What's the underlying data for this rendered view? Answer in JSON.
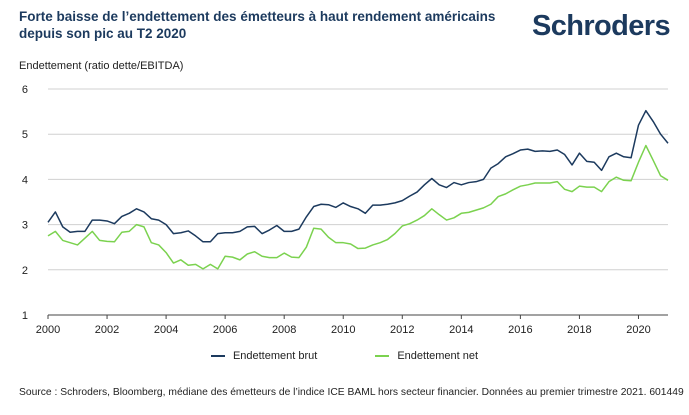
{
  "header": {
    "title_line1": "Forte baisse de l’endettement des émetteurs à haut rendement américains",
    "title_line2": "depuis son pic au T2 2020",
    "logo_text": "Schroders"
  },
  "footer": {
    "source": "Source : Schroders, Bloomberg, médiane des émetteurs de l’indice ICE BAML hors secteur financier. Données au premier trimestre 2021. 601449"
  },
  "colors": {
    "brut": "#1c3a5e",
    "net": "#7bd24f",
    "grid": "#d0d0d0",
    "axis": "#444444"
  },
  "chart_data": {
    "type": "line",
    "title": "Forte baisse de l’endettement des émetteurs à haut rendement américains depuis son pic au T2 2020",
    "ylabel": "Endettement (ratio dette/EBITDA)",
    "xlabel": "",
    "xlim": [
      2000,
      2021.0
    ],
    "ylim": [
      1,
      6
    ],
    "xticks": [
      2000,
      2002,
      2004,
      2006,
      2008,
      2010,
      2012,
      2014,
      2016,
      2018,
      2020
    ],
    "yticks": [
      1,
      2,
      3,
      4,
      5,
      6
    ],
    "grid": "horizontal",
    "legend_position": "bottom",
    "series": [
      {
        "name": "Endettement brut",
        "color": "#1c3a5e",
        "x": [
          2000.0,
          2000.25,
          2000.5,
          2000.75,
          2001.0,
          2001.25,
          2001.5,
          2001.75,
          2002.0,
          2002.25,
          2002.5,
          2002.75,
          2003.0,
          2003.25,
          2003.5,
          2003.75,
          2004.0,
          2004.25,
          2004.5,
          2004.75,
          2005.0,
          2005.25,
          2005.5,
          2005.75,
          2006.0,
          2006.25,
          2006.5,
          2006.75,
          2007.0,
          2007.25,
          2007.5,
          2007.75,
          2008.0,
          2008.25,
          2008.5,
          2008.75,
          2009.0,
          2009.25,
          2009.5,
          2009.75,
          2010.0,
          2010.25,
          2010.5,
          2010.75,
          2011.0,
          2011.25,
          2011.5,
          2011.75,
          2012.0,
          2012.25,
          2012.5,
          2012.75,
          2013.0,
          2013.25,
          2013.5,
          2013.75,
          2014.0,
          2014.25,
          2014.5,
          2014.75,
          2015.0,
          2015.25,
          2015.5,
          2015.75,
          2016.0,
          2016.25,
          2016.5,
          2016.75,
          2017.0,
          2017.25,
          2017.5,
          2017.75,
          2018.0,
          2018.25,
          2018.5,
          2018.75,
          2019.0,
          2019.25,
          2019.5,
          2019.75,
          2020.0,
          2020.25,
          2020.5,
          2020.75,
          2021.0
        ],
        "values": [
          3.05,
          3.28,
          2.95,
          2.83,
          2.85,
          2.85,
          3.1,
          3.1,
          3.08,
          3.02,
          3.18,
          3.25,
          3.35,
          3.28,
          3.13,
          3.1,
          3.0,
          2.8,
          2.82,
          2.86,
          2.75,
          2.62,
          2.62,
          2.8,
          2.82,
          2.82,
          2.85,
          2.95,
          2.96,
          2.8,
          2.88,
          2.98,
          2.85,
          2.85,
          2.9,
          3.17,
          3.4,
          3.45,
          3.44,
          3.38,
          3.48,
          3.4,
          3.35,
          3.25,
          3.43,
          3.43,
          3.45,
          3.48,
          3.53,
          3.63,
          3.72,
          3.88,
          4.02,
          3.88,
          3.82,
          3.93,
          3.88,
          3.93,
          3.95,
          4.0,
          4.25,
          4.35,
          4.5,
          4.57,
          4.65,
          4.67,
          4.62,
          4.63,
          4.62,
          4.65,
          4.55,
          4.32,
          4.58,
          4.4,
          4.38,
          4.2,
          4.5,
          4.58,
          4.5,
          4.48,
          5.2,
          5.52,
          5.28,
          5.0,
          4.8
        ]
      },
      {
        "name": "Endettement net",
        "color": "#7bd24f",
        "x": [
          2000.0,
          2000.25,
          2000.5,
          2000.75,
          2001.0,
          2001.25,
          2001.5,
          2001.75,
          2002.0,
          2002.25,
          2002.5,
          2002.75,
          2003.0,
          2003.25,
          2003.5,
          2003.75,
          2004.0,
          2004.25,
          2004.5,
          2004.75,
          2005.0,
          2005.25,
          2005.5,
          2005.75,
          2006.0,
          2006.25,
          2006.5,
          2006.75,
          2007.0,
          2007.25,
          2007.5,
          2007.75,
          2008.0,
          2008.25,
          2008.5,
          2008.75,
          2009.0,
          2009.25,
          2009.5,
          2009.75,
          2010.0,
          2010.25,
          2010.5,
          2010.75,
          2011.0,
          2011.25,
          2011.5,
          2011.75,
          2012.0,
          2012.25,
          2012.5,
          2012.75,
          2013.0,
          2013.25,
          2013.5,
          2013.75,
          2014.0,
          2014.25,
          2014.5,
          2014.75,
          2015.0,
          2015.25,
          2015.5,
          2015.75,
          2016.0,
          2016.25,
          2016.5,
          2016.75,
          2017.0,
          2017.25,
          2017.5,
          2017.75,
          2018.0,
          2018.25,
          2018.5,
          2018.75,
          2019.0,
          2019.25,
          2019.5,
          2019.75,
          2020.0,
          2020.25,
          2020.5,
          2020.75,
          2021.0
        ],
        "values": [
          2.75,
          2.85,
          2.65,
          2.6,
          2.55,
          2.7,
          2.85,
          2.65,
          2.63,
          2.62,
          2.83,
          2.85,
          3.0,
          2.95,
          2.6,
          2.55,
          2.38,
          2.15,
          2.22,
          2.1,
          2.12,
          2.02,
          2.12,
          2.02,
          2.3,
          2.28,
          2.22,
          2.35,
          2.4,
          2.3,
          2.27,
          2.27,
          2.37,
          2.28,
          2.27,
          2.5,
          2.92,
          2.9,
          2.72,
          2.6,
          2.6,
          2.57,
          2.47,
          2.48,
          2.55,
          2.6,
          2.67,
          2.8,
          2.97,
          3.02,
          3.1,
          3.2,
          3.35,
          3.22,
          3.1,
          3.15,
          3.25,
          3.27,
          3.32,
          3.37,
          3.45,
          3.62,
          3.68,
          3.77,
          3.85,
          3.88,
          3.92,
          3.92,
          3.92,
          3.95,
          3.78,
          3.73,
          3.85,
          3.83,
          3.83,
          3.73,
          3.95,
          4.05,
          3.98,
          3.97,
          4.38,
          4.75,
          4.42,
          4.08,
          3.98
        ]
      }
    ]
  }
}
